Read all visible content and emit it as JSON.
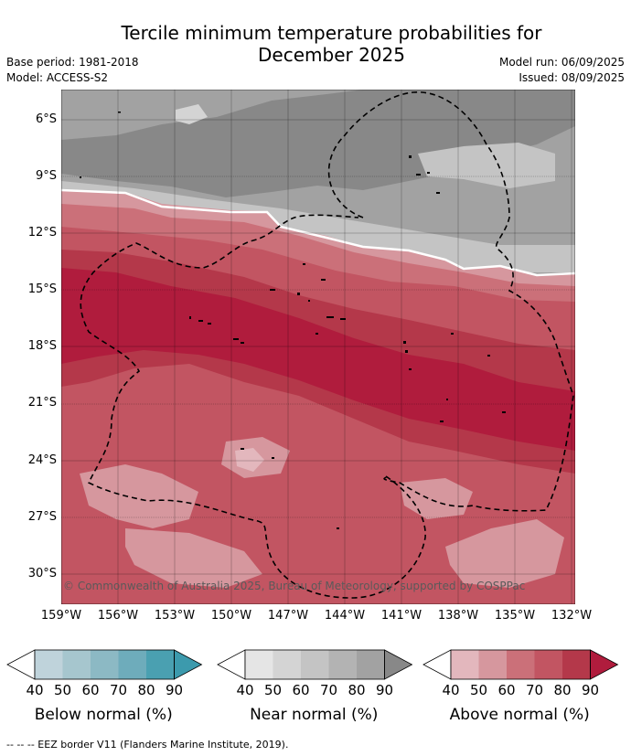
{
  "title_line1": "Tercile minimum temperature probabilities for",
  "title_line2": "December 2025",
  "base_period": "Base period: 1981-2018",
  "model": "Model: ACCESS-S2",
  "model_run": "Model run: 06/09/2025",
  "issued": "Issued: 08/09/2025",
  "copyright": "© Commonwealth of Australia 2025, Bureau of Meteorology, supported by COSPPac",
  "lat_labels": [
    "6°S",
    "9°S",
    "12°S",
    "15°S",
    "18°S",
    "21°S",
    "24°S",
    "27°S",
    "30°S"
  ],
  "lon_labels": [
    "159°W",
    "156°W",
    "153°W",
    "150°W",
    "147°W",
    "144°W",
    "141°W",
    "138°W",
    "135°W",
    "132°W"
  ],
  "colorbars": [
    {
      "label": "Below normal (%)",
      "ticks": [
        "40",
        "50",
        "60",
        "70",
        "80",
        "90"
      ],
      "colors": [
        "#ffffff",
        "#bfd3db",
        "#a6c6ce",
        "#8cb9c4",
        "#6eacbb",
        "#4aa0b1",
        "#3c9aad"
      ]
    },
    {
      "label": "Near normal (%)",
      "ticks": [
        "40",
        "50",
        "60",
        "70",
        "80",
        "90"
      ],
      "colors": [
        "#ffffff",
        "#e5e5e5",
        "#d4d4d4",
        "#c4c4c4",
        "#b3b3b3",
        "#a2a2a2",
        "#888888"
      ]
    },
    {
      "label": "Above normal (%)",
      "ticks": [
        "40",
        "50",
        "60",
        "70",
        "80",
        "90"
      ],
      "colors": [
        "#ffffff",
        "#e3b7bd",
        "#d6979e",
        "#cb7079",
        "#c25562",
        "#b4384a",
        "#b01c3d"
      ]
    }
  ],
  "footnote": "--  --  -- EEZ border V11 (Flanders Marine Institute, 2019)."
}
